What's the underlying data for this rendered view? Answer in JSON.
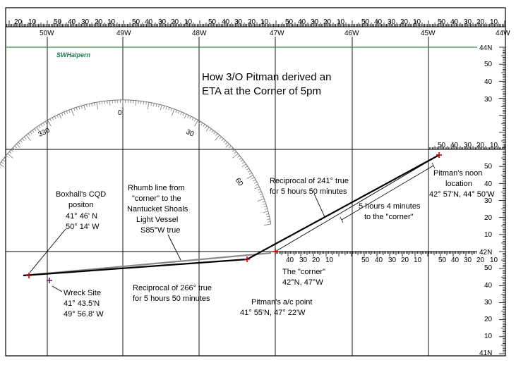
{
  "title_lines": [
    "How 3/O Pitman derived an",
    "ETA at the Corner of 5pm"
  ],
  "signature": "SWHalpern",
  "top_scale_minutes": [
    "20",
    "10",
    "50",
    "40",
    "30",
    "20",
    "10",
    "50",
    "40",
    "30",
    "20",
    "10",
    "50",
    "40",
    "30",
    "20",
    "10",
    "50",
    "40",
    "30",
    "20",
    "10",
    "50",
    "40",
    "30",
    "20",
    "10",
    "50",
    "40",
    "30",
    "20",
    "10"
  ],
  "longitudes": [
    "50W",
    "49W",
    "48W",
    "47W",
    "46W",
    "45W",
    "44W"
  ],
  "latitudes": [
    "44N",
    "42N",
    "41N"
  ],
  "right_scale_minutes": [
    "50",
    "40",
    "30",
    "50",
    "40",
    "30",
    "20",
    "10",
    "50",
    "40",
    "30",
    "20",
    "10"
  ],
  "inner_scale_42n": [
    "40",
    "30",
    "20",
    "10",
    "50",
    "40",
    "30",
    "20",
    "10",
    "50",
    "40",
    "30",
    "20",
    "10"
  ],
  "inner_scale_43n": [
    "50",
    "40",
    "30",
    "20",
    "10"
  ],
  "protractor_labels": [
    "330",
    "0",
    "30",
    "60"
  ],
  "annotations": {
    "reciprocal_241": [
      "Reciprocal of 241° true",
      "for 5 hours 50 minutes"
    ],
    "five_hours_4": [
      "5 hours 4 minutes",
      "to the \"corner\""
    ],
    "noon": [
      "Pitman's noon",
      "location",
      "42° 57'N, 44° 50'W"
    ],
    "boxhall": [
      "Boxhall's CQD",
      "positon",
      "41° 46' N",
      "50° 14' W"
    ],
    "rhumb": [
      "Rhumb line from",
      "\"corner\" to the",
      "Nantucket Shoals",
      "Light Vessel",
      "S85°W true"
    ],
    "wreck": [
      "Wreck Site",
      "41° 43.5'N",
      "49° 56.8' W"
    ],
    "reciprocal_266": [
      "Reciprocal of 266° true",
      "for 5 hours 50 minutes"
    ],
    "ac_point": [
      "Pitman's a/c point",
      "41° 55'N, 47° 22'W"
    ],
    "corner": [
      "The \"corner\"",
      "42°N, 47°W"
    ]
  },
  "colors": {
    "lat44_line": "#3a8a4a",
    "track": "#000000",
    "rhumb": "#888888",
    "marker_red": "#cc0000",
    "marker_purple": "#662266",
    "protractor": "#777777"
  }
}
